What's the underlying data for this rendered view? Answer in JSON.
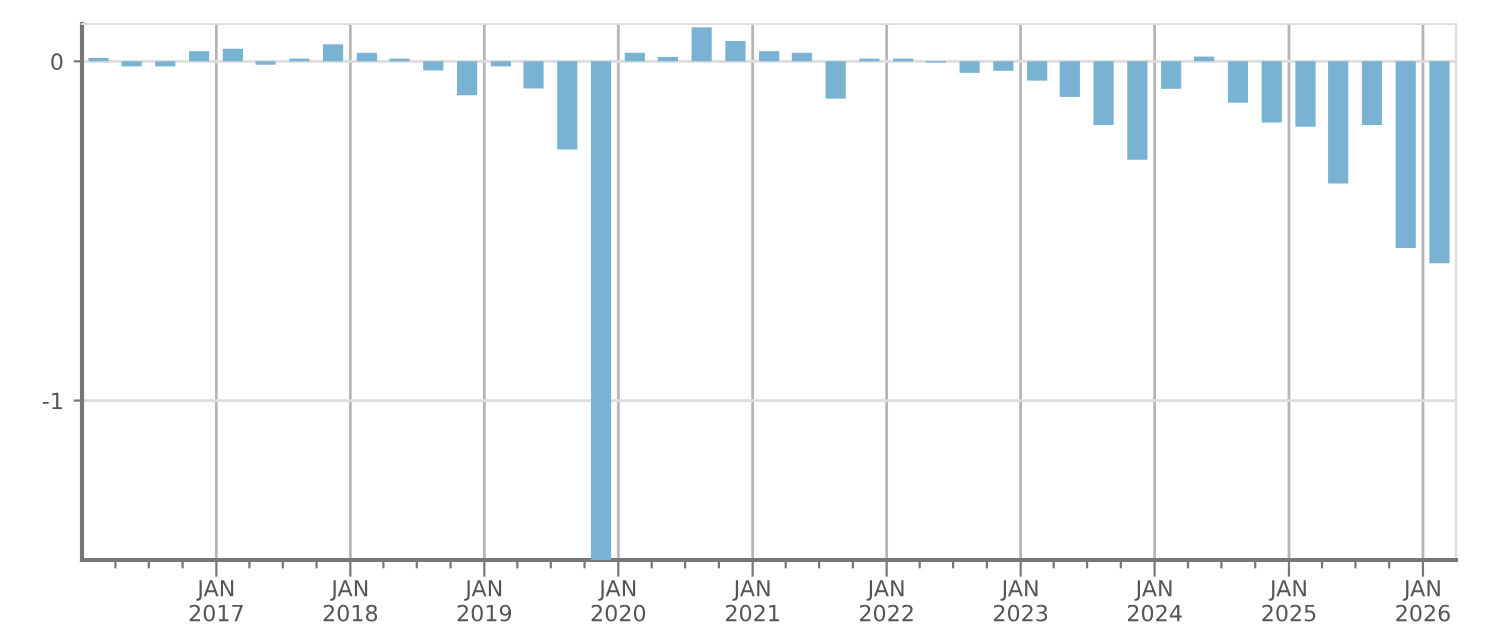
{
  "chart_data": {
    "type": "bar",
    "color": "#7ab2d4",
    "x": [
      "2016-02-15",
      "2016-05-15",
      "2016-08-15",
      "2016-11-15",
      "2017-02-15",
      "2017-05-15",
      "2017-08-15",
      "2017-11-15",
      "2018-02-15",
      "2018-05-15",
      "2018-08-15",
      "2018-11-15",
      "2019-02-15",
      "2019-05-15",
      "2019-08-15",
      "2019-11-15",
      "2020-02-15",
      "2020-05-15",
      "2020-08-15",
      "2020-11-15",
      "2021-02-15",
      "2021-05-15",
      "2021-08-15",
      "2021-11-15",
      "2022-02-15",
      "2022-05-15",
      "2022-08-15",
      "2022-11-15",
      "2023-02-15",
      "2023-05-15",
      "2023-08-15",
      "2023-11-15",
      "2024-02-15",
      "2024-05-15",
      "2024-08-15",
      "2024-11-15",
      "2025-02-15",
      "2025-05-15",
      "2025-08-15",
      "2025-11-15",
      "2026-02-15"
    ],
    "values": [
      0.01,
      -0.015,
      -0.015,
      0.03,
      0.037,
      -0.01,
      0.008,
      0.05,
      0.025,
      0.008,
      -0.027,
      -0.1,
      -0.015,
      -0.08,
      -0.26,
      -1.47,
      0.025,
      0.013,
      0.1,
      0.06,
      0.03,
      0.025,
      -0.11,
      0.008,
      0.008,
      -0.004,
      -0.034,
      -0.028,
      -0.057,
      -0.105,
      -0.188,
      -0.29,
      -0.081,
      0.014,
      -0.122,
      -0.18,
      -0.193,
      -0.36,
      -0.188,
      -0.55,
      -0.595
    ],
    "xlim": [
      "2016-01-01",
      "2026-04-01"
    ],
    "xticks": [
      {
        "value": "2016-04-01",
        "label": null
      },
      {
        "value": "2016-07-01",
        "label": null
      },
      {
        "value": "2016-10-01",
        "label": null
      },
      {
        "value": "2017-01-01",
        "label": "JAN\n2017"
      },
      {
        "value": "2017-04-01",
        "label": null
      },
      {
        "value": "2017-07-01",
        "label": null
      },
      {
        "value": "2017-10-01",
        "label": null
      },
      {
        "value": "2018-01-01",
        "label": "JAN\n2018"
      },
      {
        "value": "2018-04-01",
        "label": null
      },
      {
        "value": "2018-07-01",
        "label": null
      },
      {
        "value": "2018-10-01",
        "label": null
      },
      {
        "value": "2019-01-01",
        "label": "JAN\n2019"
      },
      {
        "value": "2019-04-01",
        "label": null
      },
      {
        "value": "2019-07-01",
        "label": null
      },
      {
        "value": "2019-10-01",
        "label": null
      },
      {
        "value": "2020-01-01",
        "label": "JAN\n2020"
      },
      {
        "value": "2020-04-01",
        "label": null
      },
      {
        "value": "2020-07-01",
        "label": null
      },
      {
        "value": "2020-10-01",
        "label": null
      },
      {
        "value": "2021-01-01",
        "label": "JAN\n2021"
      },
      {
        "value": "2021-04-01",
        "label": null
      },
      {
        "value": "2021-07-01",
        "label": null
      },
      {
        "value": "2021-10-01",
        "label": null
      },
      {
        "value": "2022-01-01",
        "label": "JAN\n2022"
      },
      {
        "value": "2022-04-01",
        "label": null
      },
      {
        "value": "2022-07-01",
        "label": null
      },
      {
        "value": "2022-10-01",
        "label": null
      },
      {
        "value": "2023-01-01",
        "label": "JAN\n2023"
      },
      {
        "value": "2023-04-01",
        "label": null
      },
      {
        "value": "2023-07-01",
        "label": null
      },
      {
        "value": "2023-10-01",
        "label": null
      },
      {
        "value": "2024-01-01",
        "label": "JAN\n2024"
      },
      {
        "value": "2024-04-01",
        "label": null
      },
      {
        "value": "2024-07-01",
        "label": null
      },
      {
        "value": "2024-10-01",
        "label": null
      },
      {
        "value": "2025-01-01",
        "label": "JAN\n2025"
      },
      {
        "value": "2025-04-01",
        "label": null
      },
      {
        "value": "2025-07-01",
        "label": null
      },
      {
        "value": "2025-10-01",
        "label": null
      },
      {
        "value": "2026-01-01",
        "label": "JAN\n2026"
      }
    ],
    "ylim": [
      -1.47,
      0.11
    ],
    "yticks": [
      0,
      -1
    ],
    "grid": true
  }
}
